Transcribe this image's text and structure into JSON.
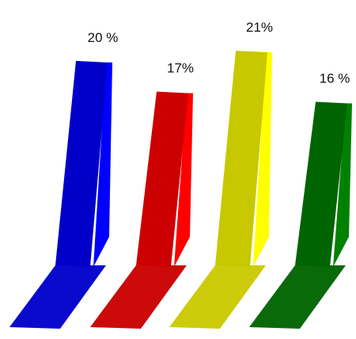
{
  "chart_data": {
    "type": "bar",
    "title": "",
    "xlabel": "",
    "ylabel": "",
    "ylim": [
      0,
      21
    ],
    "legend": "none",
    "grid": false,
    "series": [
      {
        "values": [
          20,
          17,
          21,
          16
        ],
        "labels": [
          "20 %",
          "17%",
          "21%",
          "16 %"
        ],
        "colors": [
          {
            "front": "#0000c8",
            "side": "#0000ff",
            "base": "#0a0acf"
          },
          {
            "front": "#cc0000",
            "side": "#ff0000",
            "base": "#cc0a0a"
          },
          {
            "front": "#c8c800",
            "side": "#ffff00",
            "base": "#cccc0a"
          },
          {
            "front": "#006400",
            "side": "#008000",
            "base": "#0a6a0a"
          }
        ]
      }
    ]
  }
}
